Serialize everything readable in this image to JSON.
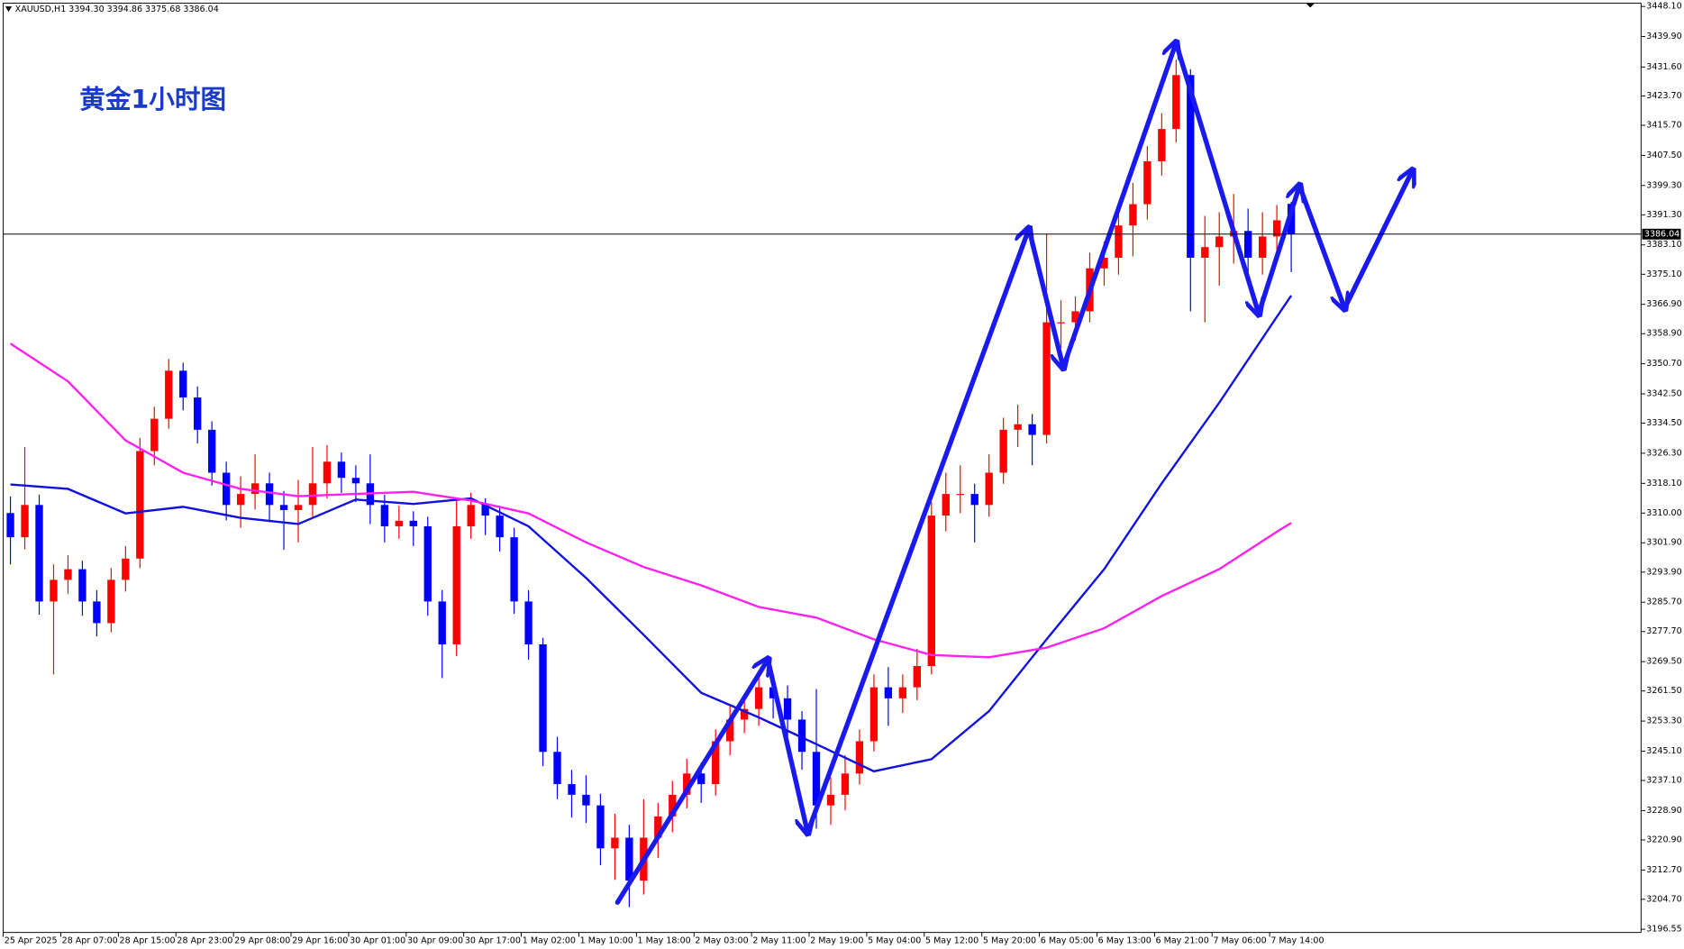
{
  "chart_data": {
    "type": "candlestick",
    "title": "XAUUSD,H1  3394.30 3394.86 3375.68 3386.04",
    "annotation": "黄金1小时图",
    "categories": [
      "25 Apr 2025",
      null,
      null,
      null,
      "28 Apr 07:00",
      null,
      null,
      null,
      "28 Apr 15:00",
      null,
      null,
      null,
      "28 Apr 23:00",
      null,
      null,
      null,
      "29 Apr 08:00",
      null,
      null,
      null,
      "29 Apr 16:00",
      null,
      null,
      null,
      "30 Apr 01:00",
      null,
      null,
      null,
      "30 Apr 09:00",
      null,
      null,
      null,
      "30 Apr 17:00",
      null,
      null,
      null,
      "1 May 02:00",
      null,
      null,
      null,
      "1 May 10:00",
      null,
      null,
      null,
      "1 May 18:00",
      null,
      null,
      null,
      "2 May 03:00",
      null,
      null,
      null,
      "2 May 11:00",
      null,
      null,
      null,
      "2 May 19:00",
      null,
      null,
      null,
      "5 May 04:00",
      null,
      null,
      null,
      "5 May 12:00",
      null,
      null,
      null,
      "5 May 20:00",
      null,
      null,
      null,
      "6 May 05:00",
      null,
      null,
      null,
      "6 May 13:00",
      null,
      null,
      null,
      "6 May 21:00",
      null,
      null,
      null,
      "7 May 06:00",
      null,
      null,
      null,
      "7 May 14:00",
      null
    ],
    "open": [
      3310.0,
      3303.4,
      3312.2,
      3285.9,
      3291.8,
      3294.7,
      3285.9,
      3280.0,
      3291.8,
      3297.6,
      3326.9,
      3335.7,
      3348.8,
      3341.5,
      3332.7,
      3321.0,
      3312.2,
      3315.2,
      3318.1,
      3312.2,
      3310.8,
      3312.2,
      3318.1,
      3324.0,
      3319.6,
      3318.1,
      3312.2,
      3306.4,
      3307.9,
      3306.4,
      3285.9,
      3274.2,
      3306.4,
      3312.2,
      3309.3,
      3303.4,
      3285.9,
      3274.2,
      3244.9,
      3236.1,
      3233.2,
      3230.3,
      3218.6,
      3221.5,
      3209.8,
      3221.5,
      3227.3,
      3233.2,
      3239.0,
      3236.1,
      3247.8,
      3253.7,
      3256.6,
      3262.5,
      3259.5,
      3253.7,
      3244.9,
      3230.3,
      3233.2,
      3239.0,
      3247.8,
      3262.5,
      3259.5,
      3262.5,
      3268.3,
      3309.3,
      3315.2,
      3315.2,
      3312.2,
      3321.0,
      3332.7,
      3334.2,
      3331.3,
      3362.0,
      3362.0,
      3365.0,
      3376.7,
      3379.6,
      3388.4,
      3394.2,
      3405.9,
      3414.7,
      3429.4,
      3379.6,
      3382.5,
      3385.4,
      3386.9,
      3379.6,
      3385.4,
      3394.3
    ],
    "high": [
      3314.5,
      3328.0,
      3315.0,
      3296.0,
      3298.5,
      3297.0,
      3289.0,
      3295.0,
      3301.0,
      3330.5,
      3339.0,
      3352.0,
      3351.0,
      3344.5,
      3335.0,
      3324.0,
      3320.0,
      3326.0,
      3321.0,
      3316.0,
      3319.0,
      3328.0,
      3328.5,
      3326.5,
      3323.0,
      3326.0,
      3315.0,
      3312.0,
      3310.5,
      3309.0,
      3289.0,
      3314.0,
      3315.5,
      3314.0,
      3312.0,
      3306.0,
      3289.0,
      3276.0,
      3249.0,
      3240.0,
      3238.5,
      3233.5,
      3228.0,
      3225.0,
      3232.0,
      3231.0,
      3237.0,
      3243.0,
      3242.0,
      3251.0,
      3257.5,
      3260.5,
      3266.0,
      3265.5,
      3263.0,
      3256.0,
      3262.0,
      3238.0,
      3244.0,
      3251.0,
      3266.0,
      3268.0,
      3266.0,
      3273.0,
      3313.0,
      3321.0,
      3323.0,
      3318.0,
      3326.0,
      3336.0,
      3339.5,
      3337.0,
      3386.0,
      3368.0,
      3369.0,
      3381.0,
      3384.0,
      3392.0,
      3400.0,
      3410.0,
      3419.0,
      3433.6,
      3431.0,
      3391.0,
      3392.0,
      3397.0,
      3393.0,
      3392.0,
      3394.0,
      3394.86
    ],
    "low": [
      3296.0,
      3300.1,
      3282.3,
      3266.0,
      3288.0,
      3282.0,
      3276.4,
      3277.5,
      3288.6,
      3295.0,
      3323.0,
      3333.0,
      3338.0,
      3329.0,
      3317.5,
      3308.0,
      3306.0,
      3311.0,
      3307.5,
      3300.0,
      3302.0,
      3309.0,
      3314.0,
      3315.5,
      3313.0,
      3307.0,
      3302.0,
      3303.0,
      3301.0,
      3282.0,
      3265.0,
      3271.0,
      3303.0,
      3304.0,
      3299.5,
      3282.5,
      3270.0,
      3241.0,
      3232.0,
      3227.0,
      3225.5,
      3214.0,
      3210.0,
      3202.6,
      3206.0,
      3216.0,
      3223.0,
      3229.5,
      3231.0,
      3233.0,
      3244.0,
      3250.0,
      3252.0,
      3254.0,
      3249.0,
      3240.0,
      3224.0,
      3225.0,
      3229.0,
      3236.0,
      3245.0,
      3252.0,
      3255.5,
      3259.0,
      3266.0,
      3305.0,
      3310.0,
      3302.0,
      3309.0,
      3318.0,
      3328.0,
      3323.0,
      3329.0,
      3355.0,
      3357.0,
      3362.0,
      3372.0,
      3375.0,
      3380.0,
      3390.0,
      3402.0,
      3411.0,
      3365.0,
      3362.0,
      3372.0,
      3378.0,
      3373.0,
      3375.0,
      3381.0,
      3375.68
    ],
    "close": [
      3303.4,
      3312.2,
      3285.9,
      3291.8,
      3294.7,
      3285.9,
      3280.0,
      3291.8,
      3297.6,
      3326.9,
      3335.7,
      3348.8,
      3341.5,
      3332.7,
      3321.0,
      3312.2,
      3315.2,
      3318.1,
      3312.2,
      3310.8,
      3312.2,
      3318.1,
      3324.0,
      3319.6,
      3318.1,
      3312.2,
      3306.4,
      3307.9,
      3306.4,
      3285.9,
      3274.2,
      3306.4,
      3312.2,
      3309.3,
      3303.4,
      3285.9,
      3274.2,
      3244.9,
      3236.1,
      3233.2,
      3230.3,
      3218.6,
      3221.5,
      3209.8,
      3221.5,
      3227.3,
      3233.2,
      3239.0,
      3236.1,
      3247.8,
      3253.7,
      3256.6,
      3262.5,
      3259.5,
      3253.7,
      3244.9,
      3230.3,
      3233.2,
      3239.0,
      3247.8,
      3262.5,
      3259.5,
      3262.5,
      3268.3,
      3309.3,
      3315.2,
      3315.2,
      3312.2,
      3321.0,
      3332.7,
      3334.2,
      3331.3,
      3362.0,
      3362.0,
      3365.0,
      3376.7,
      3379.6,
      3388.4,
      3394.2,
      3405.9,
      3414.7,
      3429.4,
      3379.6,
      3382.5,
      3385.4,
      3386.9,
      3379.6,
      3385.4,
      3389.8,
      3386.04
    ],
    "up_color": "#ff0000",
    "down_color": "#0000ff",
    "overlays": [
      {
        "color": "#1010e0",
        "x": [
          0,
          4,
          8,
          12,
          16,
          20,
          24,
          28,
          32,
          36,
          40,
          44,
          48,
          52,
          56,
          60,
          64,
          68,
          72,
          76,
          80,
          84,
          88,
          89
        ],
        "values": [
          3317.8,
          3316.6,
          3309.9,
          3311.7,
          3308.7,
          3307.0,
          3313.7,
          3312.5,
          3314.0,
          3306.4,
          3292.3,
          3276.8,
          3261.0,
          3254.3,
          3247.0,
          3239.6,
          3242.9,
          3256.0,
          3275.6,
          3294.7,
          3318.1,
          3340.1,
          3363.5,
          3369.3
        ]
      },
      {
        "color": "#ff22ee",
        "x": [
          0,
          4,
          8,
          12,
          16,
          20,
          24,
          28,
          32,
          36,
          40,
          44,
          48,
          52,
          56,
          60,
          64,
          68,
          72,
          76,
          80,
          84,
          88,
          89
        ],
        "values": [
          3356.2,
          3345.9,
          3329.8,
          3321.0,
          3316.6,
          3314.6,
          3315.2,
          3315.8,
          3313.4,
          3309.9,
          3302.0,
          3295.3,
          3290.3,
          3284.4,
          3281.5,
          3275.6,
          3271.3,
          3270.7,
          3273.3,
          3278.6,
          3287.4,
          3294.7,
          3304.9,
          3307.3
        ]
      }
    ],
    "last_price": 3386.04,
    "ylim": [
      3195.67,
      3449.86
    ],
    "yticks": [
      {
        "value": 3448.1,
        "label": "3448.10"
      },
      {
        "value": 3439.9,
        "label": "3439.90"
      },
      {
        "value": 3431.6,
        "label": "3431.60"
      },
      {
        "value": 3423.7,
        "label": "3423.70"
      },
      {
        "value": 3415.7,
        "label": "3415.70"
      },
      {
        "value": 3407.5,
        "label": "3407.50"
      },
      {
        "value": 3399.3,
        "label": "3399.30"
      },
      {
        "value": 3391.3,
        "label": "3391.30"
      },
      {
        "value": 3383.1,
        "label": "3383.10"
      },
      {
        "value": 3375.1,
        "label": "3375.10"
      },
      {
        "value": 3366.9,
        "label": "3366.90"
      },
      {
        "value": 3358.9,
        "label": "3358.90"
      },
      {
        "value": 3350.7,
        "label": "3350.70"
      },
      {
        "value": 3342.5,
        "label": "3342.50"
      },
      {
        "value": 3334.5,
        "label": "3334.50"
      },
      {
        "value": 3326.3,
        "label": "3326.30"
      },
      {
        "value": 3318.1,
        "label": "3318.10"
      },
      {
        "value": 3310.0,
        "label": "3310.00"
      },
      {
        "value": 3301.9,
        "label": "3301.90"
      },
      {
        "value": 3293.9,
        "label": "3293.90"
      },
      {
        "value": 3285.7,
        "label": "3285.70"
      },
      {
        "value": 3277.7,
        "label": "3277.70"
      },
      {
        "value": 3269.5,
        "label": "3269.50"
      },
      {
        "value": 3261.5,
        "label": "3261.50"
      },
      {
        "value": 3253.3,
        "label": "3253.30"
      },
      {
        "value": 3245.1,
        "label": "3245.10"
      },
      {
        "value": 3237.1,
        "label": "3237.10"
      },
      {
        "value": 3228.9,
        "label": "3228.90"
      },
      {
        "value": 3220.9,
        "label": "3220.90"
      },
      {
        "value": 3212.7,
        "label": "3212.70"
      },
      {
        "value": 3204.7,
        "label": "3204.70"
      },
      3196.55
    ]
  }
}
